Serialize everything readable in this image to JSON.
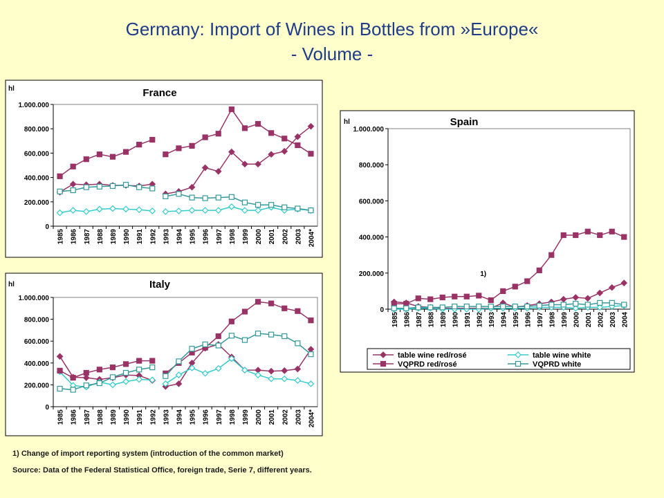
{
  "title": "Germany: Import of Wines in Bottles from »Europe«",
  "subtitle": "- Volume -",
  "footnotes": [
    "1) Change of import reporting system (introduction of the common market)",
    "Source:  Data of the Federal Statistical Office, foreign trade, Serie 7, different years."
  ],
  "chart_data": [
    {
      "type": "line",
      "title": "France",
      "y_label": "hl",
      "categories": [
        "1985",
        "1986",
        "1987",
        "1988",
        "1989",
        "1990",
        "1991",
        "1992",
        "1993",
        "1994",
        "1995",
        "1996",
        "1997",
        "1998",
        "1999",
        "2000",
        "2001",
        "2002",
        "2003",
        "2004*"
      ],
      "break_after": "1992",
      "ylim": [
        0,
        1000000
      ],
      "yticks": [
        0,
        {
          "value": 200000,
          "label": "200.000"
        },
        {
          "value": 400000,
          "label": "400.000"
        },
        {
          "value": 600000,
          "label": "600.000"
        },
        {
          "value": 800000,
          "label": "800.000"
        },
        {
          "value": 1000000,
          "label": "1.000.000"
        }
      ],
      "grid": false,
      "series": [
        {
          "color": "#993366",
          "marker": "diamond",
          "marker_fill": "#993366",
          "values": [
            280000,
            345000,
            340000,
            345000,
            335000,
            335000,
            330000,
            345000,
            265000,
            285000,
            320000,
            480000,
            450000,
            610000,
            510000,
            510000,
            590000,
            615000,
            735000,
            820000
          ]
        },
        {
          "color": "#33CCCC",
          "marker": "diamond",
          "marker_fill": "#FFFFFF",
          "values": [
            110000,
            130000,
            120000,
            140000,
            145000,
            140000,
            135000,
            125000,
            120000,
            125000,
            130000,
            130000,
            130000,
            160000,
            130000,
            130000,
            155000,
            130000,
            140000,
            130000
          ]
        },
        {
          "color": "#993366",
          "marker": "square",
          "marker_fill": "#993366",
          "values": [
            410000,
            490000,
            550000,
            590000,
            570000,
            610000,
            670000,
            710000,
            590000,
            640000,
            660000,
            730000,
            760000,
            960000,
            805000,
            840000,
            765000,
            720000,
            665000,
            595000
          ]
        },
        {
          "color": "#339999",
          "marker": "square",
          "marker_fill": "#FFFFFF",
          "values": [
            285000,
            295000,
            320000,
            325000,
            330000,
            340000,
            320000,
            310000,
            245000,
            265000,
            235000,
            230000,
            235000,
            240000,
            195000,
            175000,
            175000,
            155000,
            145000,
            130000
          ]
        }
      ]
    },
    {
      "type": "line",
      "title": "Italy",
      "y_label": "hl",
      "categories": [
        "1985",
        "1986",
        "1987",
        "1988",
        "1989",
        "1990",
        "1991",
        "1992",
        "1993",
        "1994",
        "1995",
        "1996",
        "1997",
        "1998",
        "1999",
        "2000",
        "2001",
        "2002",
        "2003",
        "2004*"
      ],
      "break_after": "1992",
      "ylim": [
        0,
        1000000
      ],
      "yticks": [
        0,
        {
          "value": 200000,
          "label": "200.000"
        },
        {
          "value": 400000,
          "label": "400.000"
        },
        {
          "value": 600000,
          "label": "600.000"
        },
        {
          "value": 800000,
          "label": "800.000"
        },
        {
          "value": 1000000,
          "label": "1.000.000"
        }
      ],
      "grid": false,
      "series": [
        {
          "color": "#993366",
          "marker": "diamond",
          "marker_fill": "#993366",
          "values": [
            460000,
            270000,
            265000,
            250000,
            265000,
            290000,
            285000,
            240000,
            185000,
            210000,
            400000,
            535000,
            570000,
            455000,
            335000,
            335000,
            325000,
            330000,
            345000,
            525000
          ]
        },
        {
          "color": "#33CCCC",
          "marker": "diamond",
          "marker_fill": "#FFFFFF",
          "values": [
            320000,
            195000,
            180000,
            225000,
            200000,
            230000,
            250000,
            245000,
            210000,
            290000,
            355000,
            305000,
            350000,
            440000,
            335000,
            290000,
            255000,
            255000,
            240000,
            210000
          ]
        },
        {
          "color": "#993366",
          "marker": "square",
          "marker_fill": "#993366",
          "values": [
            330000,
            265000,
            310000,
            340000,
            360000,
            390000,
            420000,
            420000,
            305000,
            400000,
            495000,
            540000,
            645000,
            780000,
            870000,
            960000,
            945000,
            900000,
            875000,
            790000
          ]
        },
        {
          "color": "#339999",
          "marker": "square",
          "marker_fill": "#FFFFFF",
          "values": [
            165000,
            155000,
            195000,
            215000,
            270000,
            310000,
            340000,
            360000,
            280000,
            415000,
            530000,
            570000,
            560000,
            650000,
            610000,
            670000,
            660000,
            645000,
            580000,
            480000
          ]
        }
      ]
    },
    {
      "type": "line",
      "title": "Spain",
      "y_label": "hl",
      "annotation": "1)",
      "categories": [
        "1985",
        "1986",
        "1987",
        "1988",
        "1989",
        "1990",
        "1991",
        "1992",
        "1993",
        "1994",
        "1995",
        "1996",
        "1997",
        "1998",
        "1999",
        "2000",
        "2001",
        "2002",
        "2003",
        "2004"
      ],
      "ylim": [
        0,
        1000000
      ],
      "yticks": [
        0,
        {
          "value": 200000,
          "label": "200.000"
        },
        {
          "value": 400000,
          "label": "400.000"
        },
        {
          "value": 600000,
          "label": "600.000"
        },
        {
          "value": 800000,
          "label": "800.000"
        },
        {
          "value": 1000000,
          "label": "1.000.000"
        }
      ],
      "grid": false,
      "legend": "bottom",
      "series": [
        {
          "name": "table wine red/rosé",
          "color": "#993366",
          "marker": "diamond",
          "marker_fill": "#993366",
          "values": [
            40000,
            35000,
            15000,
            10000,
            5000,
            5000,
            5000,
            5000,
            5000,
            35000,
            10000,
            20000,
            30000,
            40000,
            55000,
            65000,
            60000,
            90000,
            120000,
            145000
          ]
        },
        {
          "name": "table wine white",
          "color": "#33CCCC",
          "marker": "diamond",
          "marker_fill": "#FFFFFF",
          "values": [
            0,
            0,
            5000,
            5000,
            0,
            0,
            0,
            0,
            5000,
            5000,
            5000,
            5000,
            10000,
            10000,
            10000,
            5000,
            10000,
            10000,
            15000,
            20000
          ]
        },
        {
          "name": "VQPRD red/rosé",
          "color": "#993366",
          "marker": "square",
          "marker_fill": "#993366",
          "values": [
            30000,
            30000,
            60000,
            55000,
            65000,
            70000,
            70000,
            75000,
            50000,
            100000,
            125000,
            155000,
            215000,
            300000,
            410000,
            410000,
            430000,
            410000,
            430000,
            400000
          ]
        },
        {
          "name": "VQPRD white",
          "color": "#339999",
          "marker": "square",
          "marker_fill": "#FFFFFF",
          "values": [
            5000,
            5000,
            10000,
            10000,
            10000,
            15000,
            15000,
            15000,
            15000,
            15000,
            15000,
            15000,
            20000,
            25000,
            25000,
            30000,
            25000,
            35000,
            35000,
            25000
          ]
        }
      ]
    }
  ]
}
